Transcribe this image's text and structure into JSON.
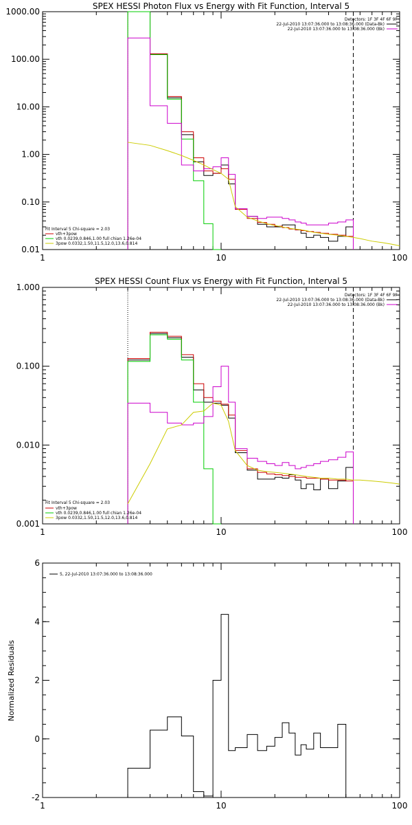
{
  "chart_data": [
    {
      "type": "line",
      "title": "SPEX HESSI Photon Flux vs Energy with Fit Function, Interval 5",
      "xlabel": "",
      "ylabel": "",
      "x_scale": "log",
      "y_scale": "log",
      "xlim": [
        1,
        100
      ],
      "ylim": [
        0.01,
        1000
      ],
      "x_ticks": [
        1,
        10,
        100
      ],
      "x_tick_labels": [
        "1",
        "10",
        "100"
      ],
      "y_ticks": [
        1000,
        100,
        10,
        1,
        0.1,
        0.01
      ],
      "y_tick_labels": [
        "1000.00",
        "100.00",
        "10.00",
        "1.00",
        "0.10",
        "0.01"
      ],
      "header": [
        "Detectors: 1F 3F 4F 6F 9F",
        "22-Jul-2010 13:07:36.000 to 13:08:36.000 (Data-Bk)",
        "22-Jul-2010 13:07:36.000 to 13:08:36.000 (Bk)"
      ],
      "annotations": [
        "Fit Interval 5   Chi-square = 2.03",
        "vth+3pow",
        "vth 0.0239,0.846,1.00  full chian 1.26e-04",
        "3pow 0.0332,1.50,11.5,12.0,13.6,0.814"
      ],
      "vlines": [
        {
          "x": 3,
          "style": "dotted"
        },
        {
          "x": 55,
          "style": "dashed"
        }
      ],
      "bin_edges": [
        3,
        4,
        5,
        6,
        7,
        8,
        9,
        10,
        11,
        12,
        14,
        16,
        18,
        20,
        22,
        24,
        26,
        28,
        30,
        33,
        36,
        40,
        45,
        50,
        55
      ],
      "series": [
        {
          "name": "",
          "color": "#000000",
          "values": [
            1000,
            130,
            15.5,
            2.6,
            0.7,
            0.36,
            0.4,
            0.6,
            0.24,
            0.07,
            0.05,
            0.034,
            0.03,
            0.03,
            0.033,
            0.033,
            0.026,
            0.022,
            0.018,
            0.02,
            0.018,
            0.015,
            0.019,
            0.03
          ]
        },
        {
          "name": "",
          "color": "#cc0000",
          "values": [
            1000,
            130,
            16.5,
            3,
            0.85,
            0.45,
            0.4,
            0.5,
            0.3,
            0.07,
            0.045,
            0.037,
            0.034,
            0.031,
            0.029,
            0.027,
            0.026,
            0.025,
            0.024,
            0.023,
            0.022,
            0.021,
            0.02,
            0.019
          ]
        },
        {
          "name": "",
          "color": "#00cc00",
          "values": [
            1000,
            125,
            14.5,
            2.1,
            0.28,
            0.035,
            0.005
          ]
        },
        {
          "name": "",
          "color": "#cc00cc",
          "values": [
            280,
            10.5,
            4.5,
            0.6,
            0.45,
            0.5,
            0.55,
            0.85,
            0.38,
            0.072,
            0.05,
            0.045,
            0.048,
            0.048,
            0.045,
            0.042,
            0.038,
            0.036,
            0.033,
            0.033,
            0.033,
            0.036,
            0.038,
            0.042
          ]
        }
      ],
      "model_line": {
        "name": "",
        "color": "#cccc00",
        "x": [
          3,
          4,
          5,
          6,
          7,
          8,
          9,
          10,
          11,
          12,
          14,
          16,
          18,
          20,
          22,
          24,
          26,
          28,
          30,
          33,
          36,
          40,
          45,
          50,
          55,
          60,
          70,
          80,
          90,
          100
        ],
        "y": [
          1.8,
          1.55,
          1.2,
          0.95,
          0.75,
          0.6,
          0.48,
          0.4,
          0.3,
          0.08,
          0.048,
          0.04,
          0.035,
          0.032,
          0.03,
          0.028,
          0.027,
          0.026,
          0.025,
          0.023,
          0.022,
          0.021,
          0.02,
          0.019,
          0.018,
          0.017,
          0.015,
          0.014,
          0.013,
          0.012
        ]
      }
    },
    {
      "type": "line",
      "title": "SPEX HESSI Count Flux vs Energy with Fit Function, Interval 5",
      "xlabel": "",
      "ylabel": "",
      "x_scale": "log",
      "y_scale": "log",
      "xlim": [
        1,
        100
      ],
      "ylim": [
        0.001,
        1
      ],
      "x_ticks": [
        1,
        10,
        100
      ],
      "x_tick_labels": [
        "1",
        "10",
        "100"
      ],
      "y_ticks": [
        1,
        0.1,
        0.01,
        0.001
      ],
      "y_tick_labels": [
        "1.000",
        "0.100",
        "0.010",
        "0.001"
      ],
      "header": [
        "Detectors: 1F 3F 4F 6F 9F",
        "22-Jul-2010 13:07:36.000 to 13:08:36.000 (Data-Bk)",
        "22-Jul-2010 13:07:36.000 to 13:08:36.000 (Bk)"
      ],
      "annotations": [
        "Fit Interval 5   Chi-square = 2.03",
        "vth+3pow",
        "vth 0.0239,0.846,1.00  full chian 1.26e-04",
        "3pow 0.0332,1.50,11.5,12.0,13.6,0.814"
      ],
      "vlines": [
        {
          "x": 3,
          "style": "dotted"
        },
        {
          "x": 55,
          "style": "dashed"
        }
      ],
      "bin_edges": [
        3,
        4,
        5,
        6,
        7,
        8,
        9,
        10,
        11,
        12,
        14,
        16,
        18,
        20,
        22,
        24,
        26,
        28,
        30,
        33,
        36,
        40,
        45,
        50,
        55
      ],
      "series": [
        {
          "name": "",
          "color": "#000000",
          "values": [
            0.12,
            0.26,
            0.23,
            0.13,
            0.05,
            0.035,
            0.034,
            0.032,
            0.022,
            0.008,
            0.0048,
            0.0037,
            0.0037,
            0.0039,
            0.0038,
            0.0042,
            0.0036,
            0.0028,
            0.0032,
            0.0027,
            0.0037,
            0.0028,
            0.0035,
            0.0052
          ]
        },
        {
          "name": "",
          "color": "#cc0000",
          "values": [
            0.125,
            0.27,
            0.24,
            0.14,
            0.06,
            0.04,
            0.036,
            0.033,
            0.024,
            0.0085,
            0.005,
            0.0045,
            0.0043,
            0.0042,
            0.0041,
            0.004,
            0.0039,
            0.0039,
            0.0038,
            0.0038,
            0.0037,
            0.0036,
            0.0036,
            0.0035
          ]
        },
        {
          "name": "",
          "color": "#00cc00",
          "values": [
            0.115,
            0.25,
            0.22,
            0.12,
            0.035,
            0.005,
            0.0005
          ]
        },
        {
          "name": "",
          "color": "#cc00cc",
          "values": [
            0.034,
            0.026,
            0.019,
            0.018,
            0.019,
            0.023,
            0.055,
            0.1,
            0.035,
            0.009,
            0.0068,
            0.0062,
            0.0058,
            0.0055,
            0.006,
            0.0055,
            0.005,
            0.0052,
            0.0055,
            0.0058,
            0.0062,
            0.0065,
            0.007,
            0.0082
          ]
        }
      ],
      "model_line": {
        "name": "",
        "color": "#cccc00",
        "x": [
          3,
          4,
          5,
          6,
          7,
          8,
          9,
          10,
          11,
          12,
          14,
          16,
          18,
          20,
          22,
          24,
          26,
          28,
          30,
          33,
          36,
          40,
          45,
          50,
          55,
          60,
          70,
          80,
          90,
          100
        ],
        "y": [
          0.0018,
          0.0058,
          0.016,
          0.018,
          0.026,
          0.027,
          0.034,
          0.032,
          0.02,
          0.0085,
          0.0055,
          0.0048,
          0.0046,
          0.0045,
          0.0044,
          0.0043,
          0.0042,
          0.0041,
          0.004,
          0.0039,
          0.0038,
          0.0038,
          0.0037,
          0.0037,
          0.0036,
          0.0036,
          0.0035,
          0.0034,
          0.0033,
          0.0032
        ]
      }
    },
    {
      "type": "line",
      "title": "",
      "xlabel": "",
      "ylabel": "Normalized Residuals",
      "x_scale": "log",
      "y_scale": "linear",
      "xlim": [
        1,
        100
      ],
      "ylim": [
        -2,
        6
      ],
      "x_ticks": [
        1,
        10,
        100
      ],
      "x_tick_labels": [
        "1",
        "10",
        "100"
      ],
      "y_ticks": [
        6,
        4,
        2,
        0,
        -2
      ],
      "y_tick_labels": [
        "6",
        "4",
        "2",
        "0",
        "-2"
      ],
      "legend": "5, 22-Jul-2010 13:07:36.000 to 13:08:36.000",
      "bin_edges": [
        3,
        4,
        5,
        6,
        7,
        8,
        9,
        10,
        11,
        12,
        14,
        16,
        18,
        20,
        22,
        24,
        26,
        28,
        30,
        33,
        36,
        40,
        45,
        50,
        55
      ],
      "series": [
        {
          "name": "5, 22-Jul-2010 13:07:36.000 to 13:08:36.000",
          "color": "#000000",
          "values": [
            -1.0,
            0.3,
            0.75,
            0.1,
            -1.8,
            -1.95,
            2.0,
            4.25,
            -0.4,
            -0.3,
            0.15,
            -0.4,
            -0.25,
            0.05,
            0.55,
            0.2,
            -0.55,
            -0.2,
            -0.35,
            0.2,
            -0.3,
            -0.3,
            0.5,
            -2.0
          ]
        }
      ]
    }
  ]
}
